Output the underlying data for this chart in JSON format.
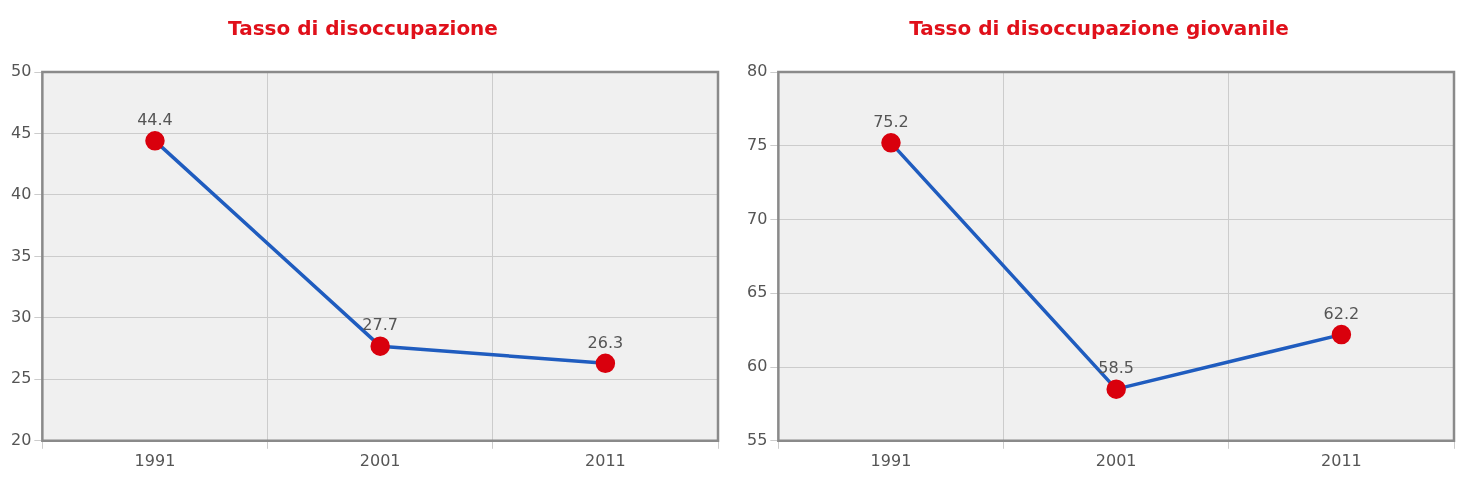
{
  "chart_data": [
    {
      "type": "line",
      "title": "Tasso di disoccupazione",
      "categories": [
        "1991",
        "2001",
        "2011"
      ],
      "series": [
        {
          "color": "#1f5cbf",
          "colors": [
            "#d9000d",
            "#d9000d",
            "#d9000d"
          ],
          "values": [
            44.4,
            27.7,
            26.3
          ]
        }
      ],
      "ylim": [
        20,
        50
      ],
      "yticks": [
        20,
        25,
        30,
        35,
        40,
        45,
        50
      ],
      "grid": true,
      "marker": "circle",
      "data_labels": true,
      "legend": false
    },
    {
      "type": "line",
      "title": "Tasso di disoccupazione giovanile",
      "categories": [
        "1991",
        "2001",
        "2011"
      ],
      "series": [
        {
          "color": "#1f5cbf",
          "colors": [
            "#d9000d",
            "#d9000d",
            "#d9000d"
          ],
          "values": [
            75.2,
            58.5,
            62.2
          ]
        }
      ],
      "ylim": [
        55,
        80
      ],
      "yticks": [
        55,
        60,
        65,
        70,
        75,
        80
      ],
      "grid": true,
      "marker": "circle",
      "data_labels": true,
      "legend": false
    }
  ]
}
